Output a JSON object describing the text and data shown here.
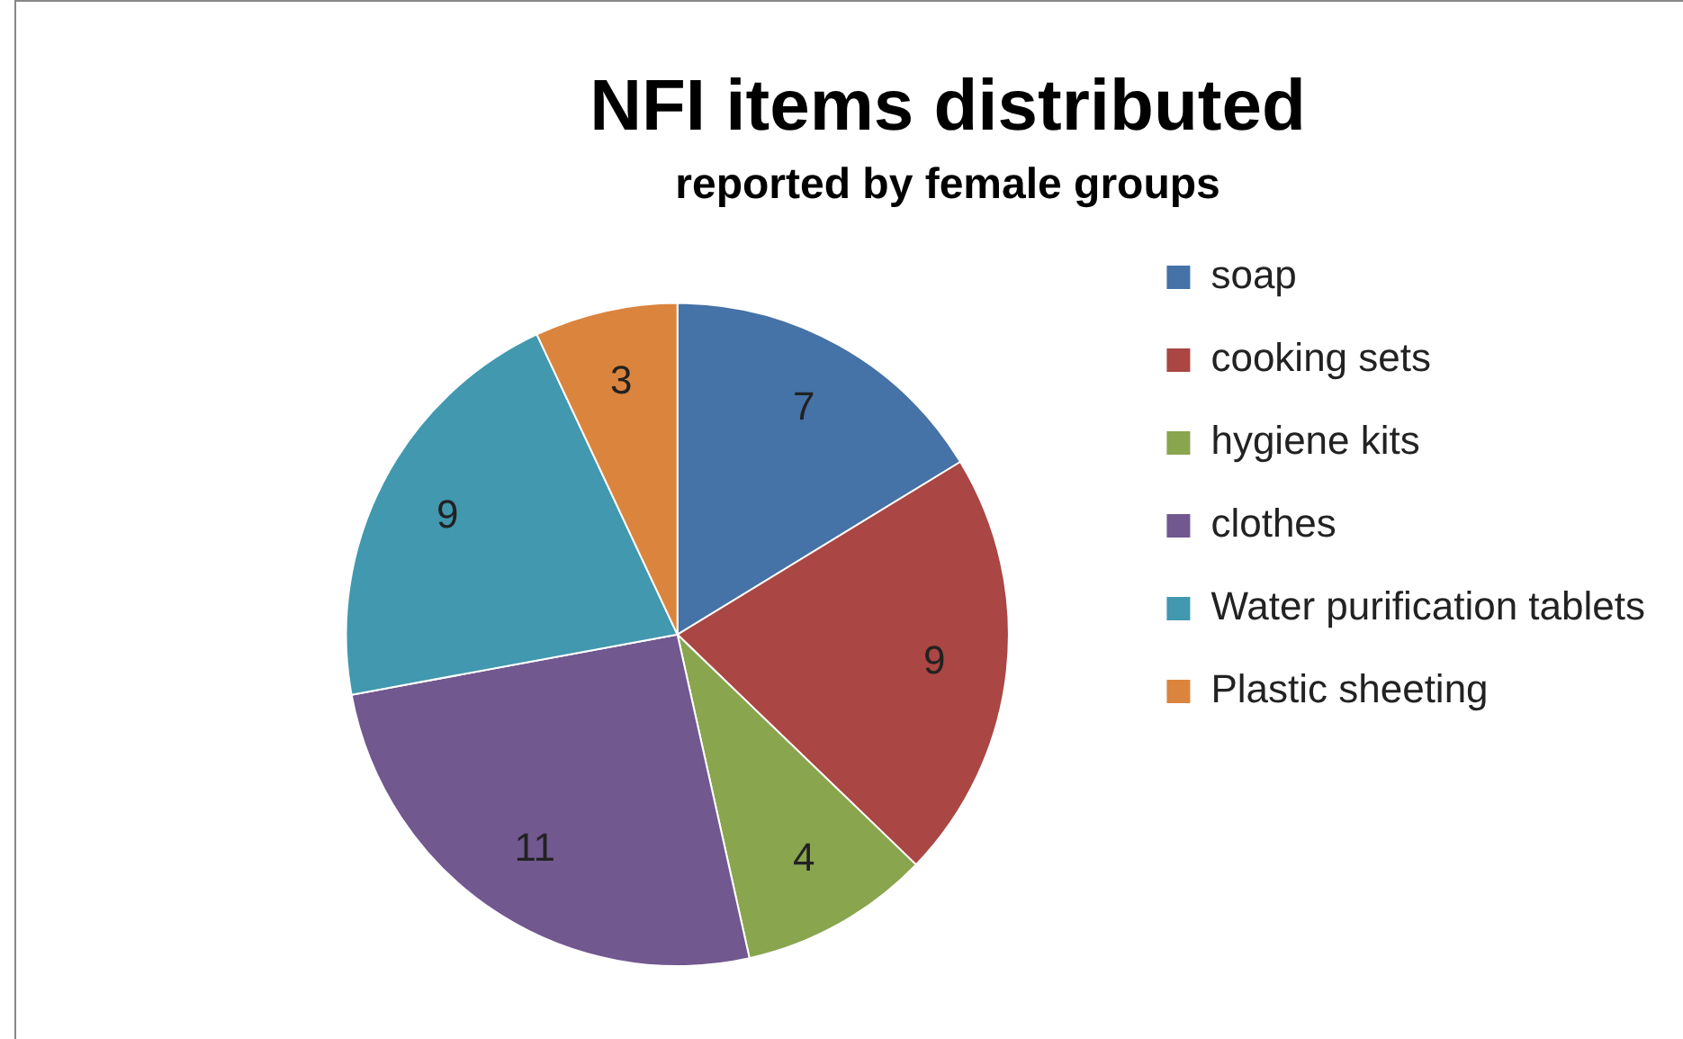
{
  "chart_data": {
    "type": "pie",
    "title": "NFI items distributed",
    "subtitle": "reported by female groups",
    "categories": [
      "soap",
      "cooking sets",
      "hygiene kits",
      "clothes",
      "Water purification tablets",
      "Plastic sheeting"
    ],
    "values": [
      7,
      9,
      4,
      11,
      9,
      3
    ],
    "colors": [
      "#4572a7",
      "#aa4643",
      "#89a54e",
      "#71588f",
      "#4198af",
      "#db843d"
    ],
    "data_labels": true,
    "legend": "right"
  }
}
